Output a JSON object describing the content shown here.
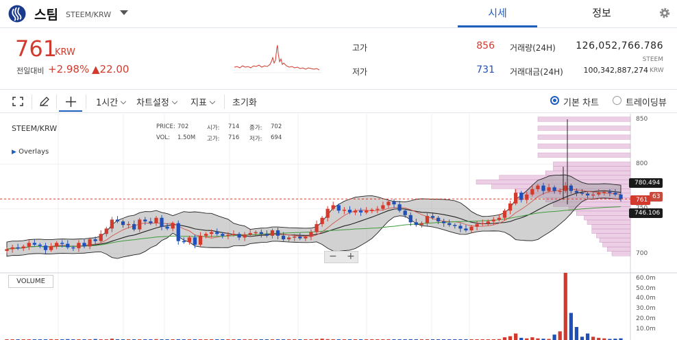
{
  "header": {
    "coin_name": "스팀",
    "pair": "STEEM/KRW",
    "tabs": [
      {
        "label": "시세"
      },
      {
        "label": "정보"
      }
    ]
  },
  "summary": {
    "price": "761",
    "price_unit": "KRW",
    "prev_label": "전일대비",
    "change_pct": "+2.98%",
    "change_abs": "▲22.00",
    "high_label": "고가",
    "high_value": "856",
    "low_label": "저가",
    "low_value": "731",
    "volume_label": "거래량(24H)",
    "volume_value": "126,052,766.786",
    "volume_unit": "STEEM",
    "amount_label": "거래대금(24H)",
    "amount_value": "100,342,887,274",
    "amount_unit": "KRW"
  },
  "toolbar": {
    "interval": "1시간",
    "chart_settings": "차트설정",
    "indicator": "지표",
    "reset": "초기화",
    "basic_chart": "기본 차트",
    "tradingview": "트레이딩뷰"
  },
  "chart": {
    "symbol": "STEEM/KRW",
    "overlays": "Overlays",
    "ohlc": {
      "price_label": "PRICE:",
      "price": "702",
      "open_label": "시가:",
      "open": "714",
      "close_label": "종가:",
      "close": "702",
      "vol_label": "VOL:",
      "vol": "1.50M",
      "high_label": "고가:",
      "high": "716",
      "low_label": "저가:",
      "low": "694"
    },
    "price_axis": [
      "850",
      "800",
      "750",
      "700"
    ],
    "volume_axis": [
      "60.0m",
      "50.0m",
      "40.0m",
      "30.0m",
      "20.0m",
      "10.0m"
    ],
    "tags": {
      "upper_band": "780.494",
      "current": "761",
      "lower_band": "746.106",
      "partial": "63"
    },
    "volume_badge": "VOLUME",
    "colors": {
      "up": "#d13a2c",
      "down": "#1f4fb8",
      "accent": "#1f5fbf"
    }
  },
  "chart_data": {
    "type": "candlestick",
    "symbol": "STEEM/KRW",
    "y_range": [
      690,
      855
    ],
    "close": [
      705,
      707,
      706,
      708,
      712,
      710,
      709,
      704,
      708,
      712,
      711,
      707,
      706,
      712,
      708,
      716,
      714,
      722,
      728,
      738,
      736,
      732,
      733,
      727,
      738,
      736,
      734,
      740,
      730,
      728,
      734,
      714,
      713,
      718,
      710,
      720,
      722,
      724,
      722,
      720,
      721,
      722,
      718,
      721,
      723,
      724,
      722,
      720,
      726,
      720,
      716,
      718,
      719,
      717,
      719,
      724,
      733,
      740,
      750,
      754,
      748,
      749,
      746,
      748,
      746,
      748,
      749,
      750,
      754,
      758,
      755,
      748,
      743,
      735,
      732,
      734,
      742,
      740,
      736,
      734,
      732,
      731,
      728,
      726,
      730,
      733,
      734,
      736,
      738,
      740,
      748,
      756,
      768,
      760,
      766,
      772,
      776,
      770,
      774,
      770,
      770,
      776,
      770,
      768,
      767,
      765,
      766,
      768,
      769,
      768,
      766,
      761
    ],
    "volume_m": [
      0.3,
      0.5,
      0.2,
      0.4,
      0.6,
      0.3,
      0.2,
      0.5,
      0.7,
      0.4,
      0.3,
      0.8,
      0.6,
      0.5,
      0.4,
      0.3,
      0.9,
      0.6,
      0.5,
      1.2,
      0.7,
      0.4,
      0.3,
      0.6,
      0.5,
      0.4,
      0.3,
      0.8,
      0.5,
      0.4,
      0.6,
      0.7,
      0.3,
      0.4,
      0.5,
      0.4,
      0.3,
      0.5,
      0.4,
      0.6,
      0.3,
      0.5,
      0.4,
      0.3,
      0.5,
      0.4,
      0.6,
      0.3,
      0.4,
      0.5,
      0.4,
      0.3,
      0.4,
      0.3,
      0.5,
      0.6,
      0.9,
      1.2,
      0.8,
      0.7,
      0.5,
      0.6,
      0.4,
      0.5,
      0.3,
      0.4,
      0.3,
      0.4,
      0.5,
      0.6,
      0.4,
      0.5,
      0.6,
      0.7,
      0.5,
      0.4,
      0.5,
      0.6,
      0.4,
      0.3,
      0.4,
      0.5,
      0.3,
      0.4,
      0.6,
      0.5,
      0.4,
      0.5,
      0.6,
      0.8,
      2.5,
      3.5,
      6.0,
      2.0,
      1.5,
      2.5,
      1.5,
      1.2,
      1.0,
      5.0,
      8.0,
      62.0,
      25.0,
      12.0,
      3.0,
      6.0,
      3.0,
      2.0,
      1.5,
      1.0,
      1.2,
      1.5
    ]
  }
}
